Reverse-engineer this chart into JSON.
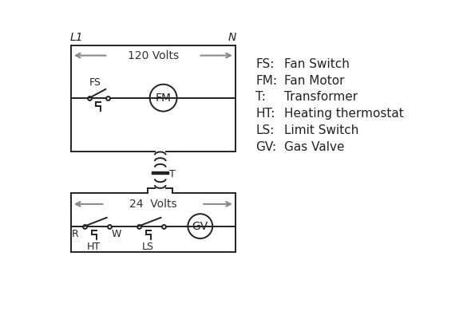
{
  "bg_color": "#ffffff",
  "line_color": "#222222",
  "arrow_color": "#888888",
  "legend_items": [
    [
      "FS:",
      "Fan Switch"
    ],
    [
      "FM:",
      "Fan Motor"
    ],
    [
      "T:",
      "Transformer"
    ],
    [
      "HT:",
      "Heating thermostat"
    ],
    [
      "LS:",
      "Limit Switch"
    ],
    [
      "GV:",
      "Gas Valve"
    ]
  ],
  "L1_label": "L1",
  "N_label": "N",
  "volts120": "120 Volts",
  "volts24": "24  Volts",
  "T_label": "T",
  "R_label": "R",
  "W_label": "W",
  "HT_label": "HT",
  "LS_label": "LS",
  "FS_label": "FS",
  "FM_label": "FM",
  "GV_label": "GV"
}
